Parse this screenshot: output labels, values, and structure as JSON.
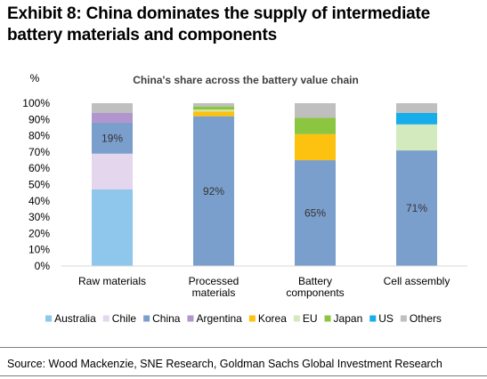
{
  "exhibit_title": "Exhibit 8: China dominates the supply of intermediate battery materials and components",
  "source": "Source: Wood Mackenzie, SNE Research, Goldman Sachs Global Investment Research",
  "chart_data": {
    "type": "bar",
    "stacked": true,
    "title": "China's share across the battery value chain",
    "ylabel": "%",
    "ylim": [
      0,
      100
    ],
    "yticks": [
      "0%",
      "10%",
      "20%",
      "30%",
      "40%",
      "50%",
      "60%",
      "70%",
      "80%",
      "90%",
      "100%"
    ],
    "grid": false,
    "legend_position": "bottom",
    "categories": [
      [
        "Raw materials"
      ],
      [
        "Processed",
        "materials"
      ],
      [
        "Battery",
        "components"
      ],
      [
        "Cell assembly"
      ]
    ],
    "series": [
      {
        "name": "Australia",
        "color": "#8EC6EC",
        "values": [
          47,
          0,
          0,
          0
        ]
      },
      {
        "name": "Chile",
        "color": "#E4D6EC",
        "values": [
          22,
          0,
          0,
          0
        ]
      },
      {
        "name": "China",
        "color": "#7B9FCC",
        "values": [
          19,
          92,
          65,
          71
        ]
      },
      {
        "name": "Argentina",
        "color": "#B195CF",
        "values": [
          6,
          0,
          0,
          0
        ]
      },
      {
        "name": "Korea",
        "color": "#FDC10F",
        "values": [
          0,
          3,
          16,
          0
        ]
      },
      {
        "name": "EU",
        "color": "#D3EABF",
        "values": [
          0,
          1,
          0,
          16
        ]
      },
      {
        "name": "Japan",
        "color": "#8CC641",
        "values": [
          0,
          2,
          10,
          0
        ]
      },
      {
        "name": "US",
        "color": "#16ADEA",
        "values": [
          0,
          0,
          0,
          7
        ]
      },
      {
        "name": "Others",
        "color": "#BFBFBF",
        "values": [
          6,
          2,
          9,
          6
        ]
      }
    ],
    "data_labels": [
      {
        "category": 0,
        "series": "China",
        "text": "19%"
      },
      {
        "category": 1,
        "series": "China",
        "text": "92%"
      },
      {
        "category": 2,
        "series": "China",
        "text": "65%"
      },
      {
        "category": 3,
        "series": "China",
        "text": "71%"
      }
    ]
  }
}
